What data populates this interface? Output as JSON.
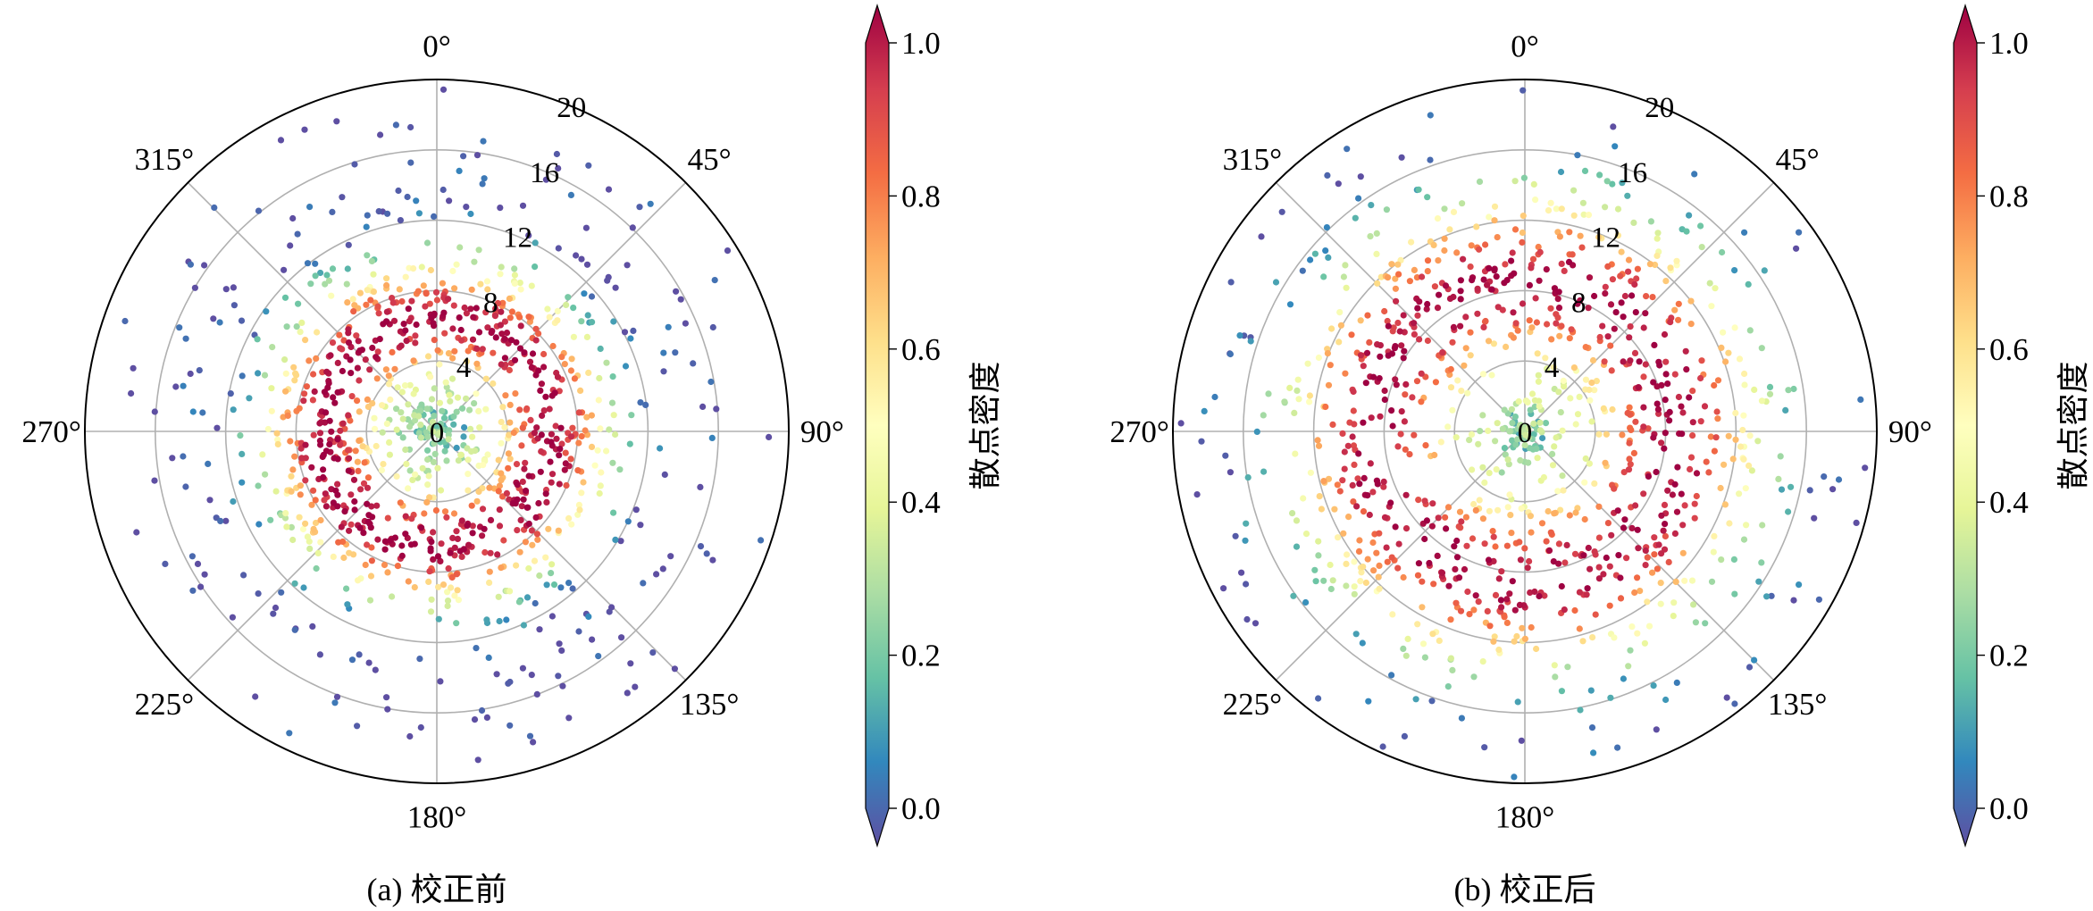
{
  "chart_data": [
    {
      "type": "scatter",
      "projection": "polar",
      "title": "(a) 校正前",
      "angle_tick_labels": [
        "0°",
        "45°",
        "90°",
        "135°",
        "180°",
        "225°",
        "270°",
        "315°"
      ],
      "radial_tick_labels": [
        "0",
        "4",
        "8",
        "12",
        "16",
        "20"
      ],
      "rlim": [
        0,
        20
      ],
      "angle_zero": "top",
      "angle_direction": "clockwise",
      "grid": true,
      "colormap": "Spectral_r",
      "colorbar": {
        "label": "散点密度",
        "range": [
          0,
          1
        ],
        "tick_labels": [
          "0.0",
          "0.2",
          "0.4",
          "0.6",
          "0.8",
          "1.0"
        ],
        "extend": "both"
      },
      "distribution": {
        "point_count": 1200,
        "ring_peak_radius": 6.5,
        "ring_width": 2.0,
        "center_cluster_radius": 1.6
      }
    },
    {
      "type": "scatter",
      "projection": "polar",
      "title": "(b) 校正后",
      "angle_tick_labels": [
        "0°",
        "45°",
        "90°",
        "135°",
        "180°",
        "225°",
        "270°",
        "315°"
      ],
      "radial_tick_labels": [
        "0",
        "4",
        "8",
        "12",
        "16",
        "20"
      ],
      "rlim": [
        0,
        20
      ],
      "angle_zero": "top",
      "angle_direction": "clockwise",
      "grid": true,
      "colormap": "Spectral_r",
      "colorbar": {
        "label": "散点密度",
        "range": [
          0,
          1
        ],
        "tick_labels": [
          "0.0",
          "0.2",
          "0.4",
          "0.6",
          "0.8",
          "1.0"
        ],
        "extend": "both"
      },
      "distribution": {
        "point_count": 1200,
        "ring_peak_radius": 8.5,
        "ring_width": 3.0,
        "center_cluster_radius": 1.6
      }
    }
  ]
}
